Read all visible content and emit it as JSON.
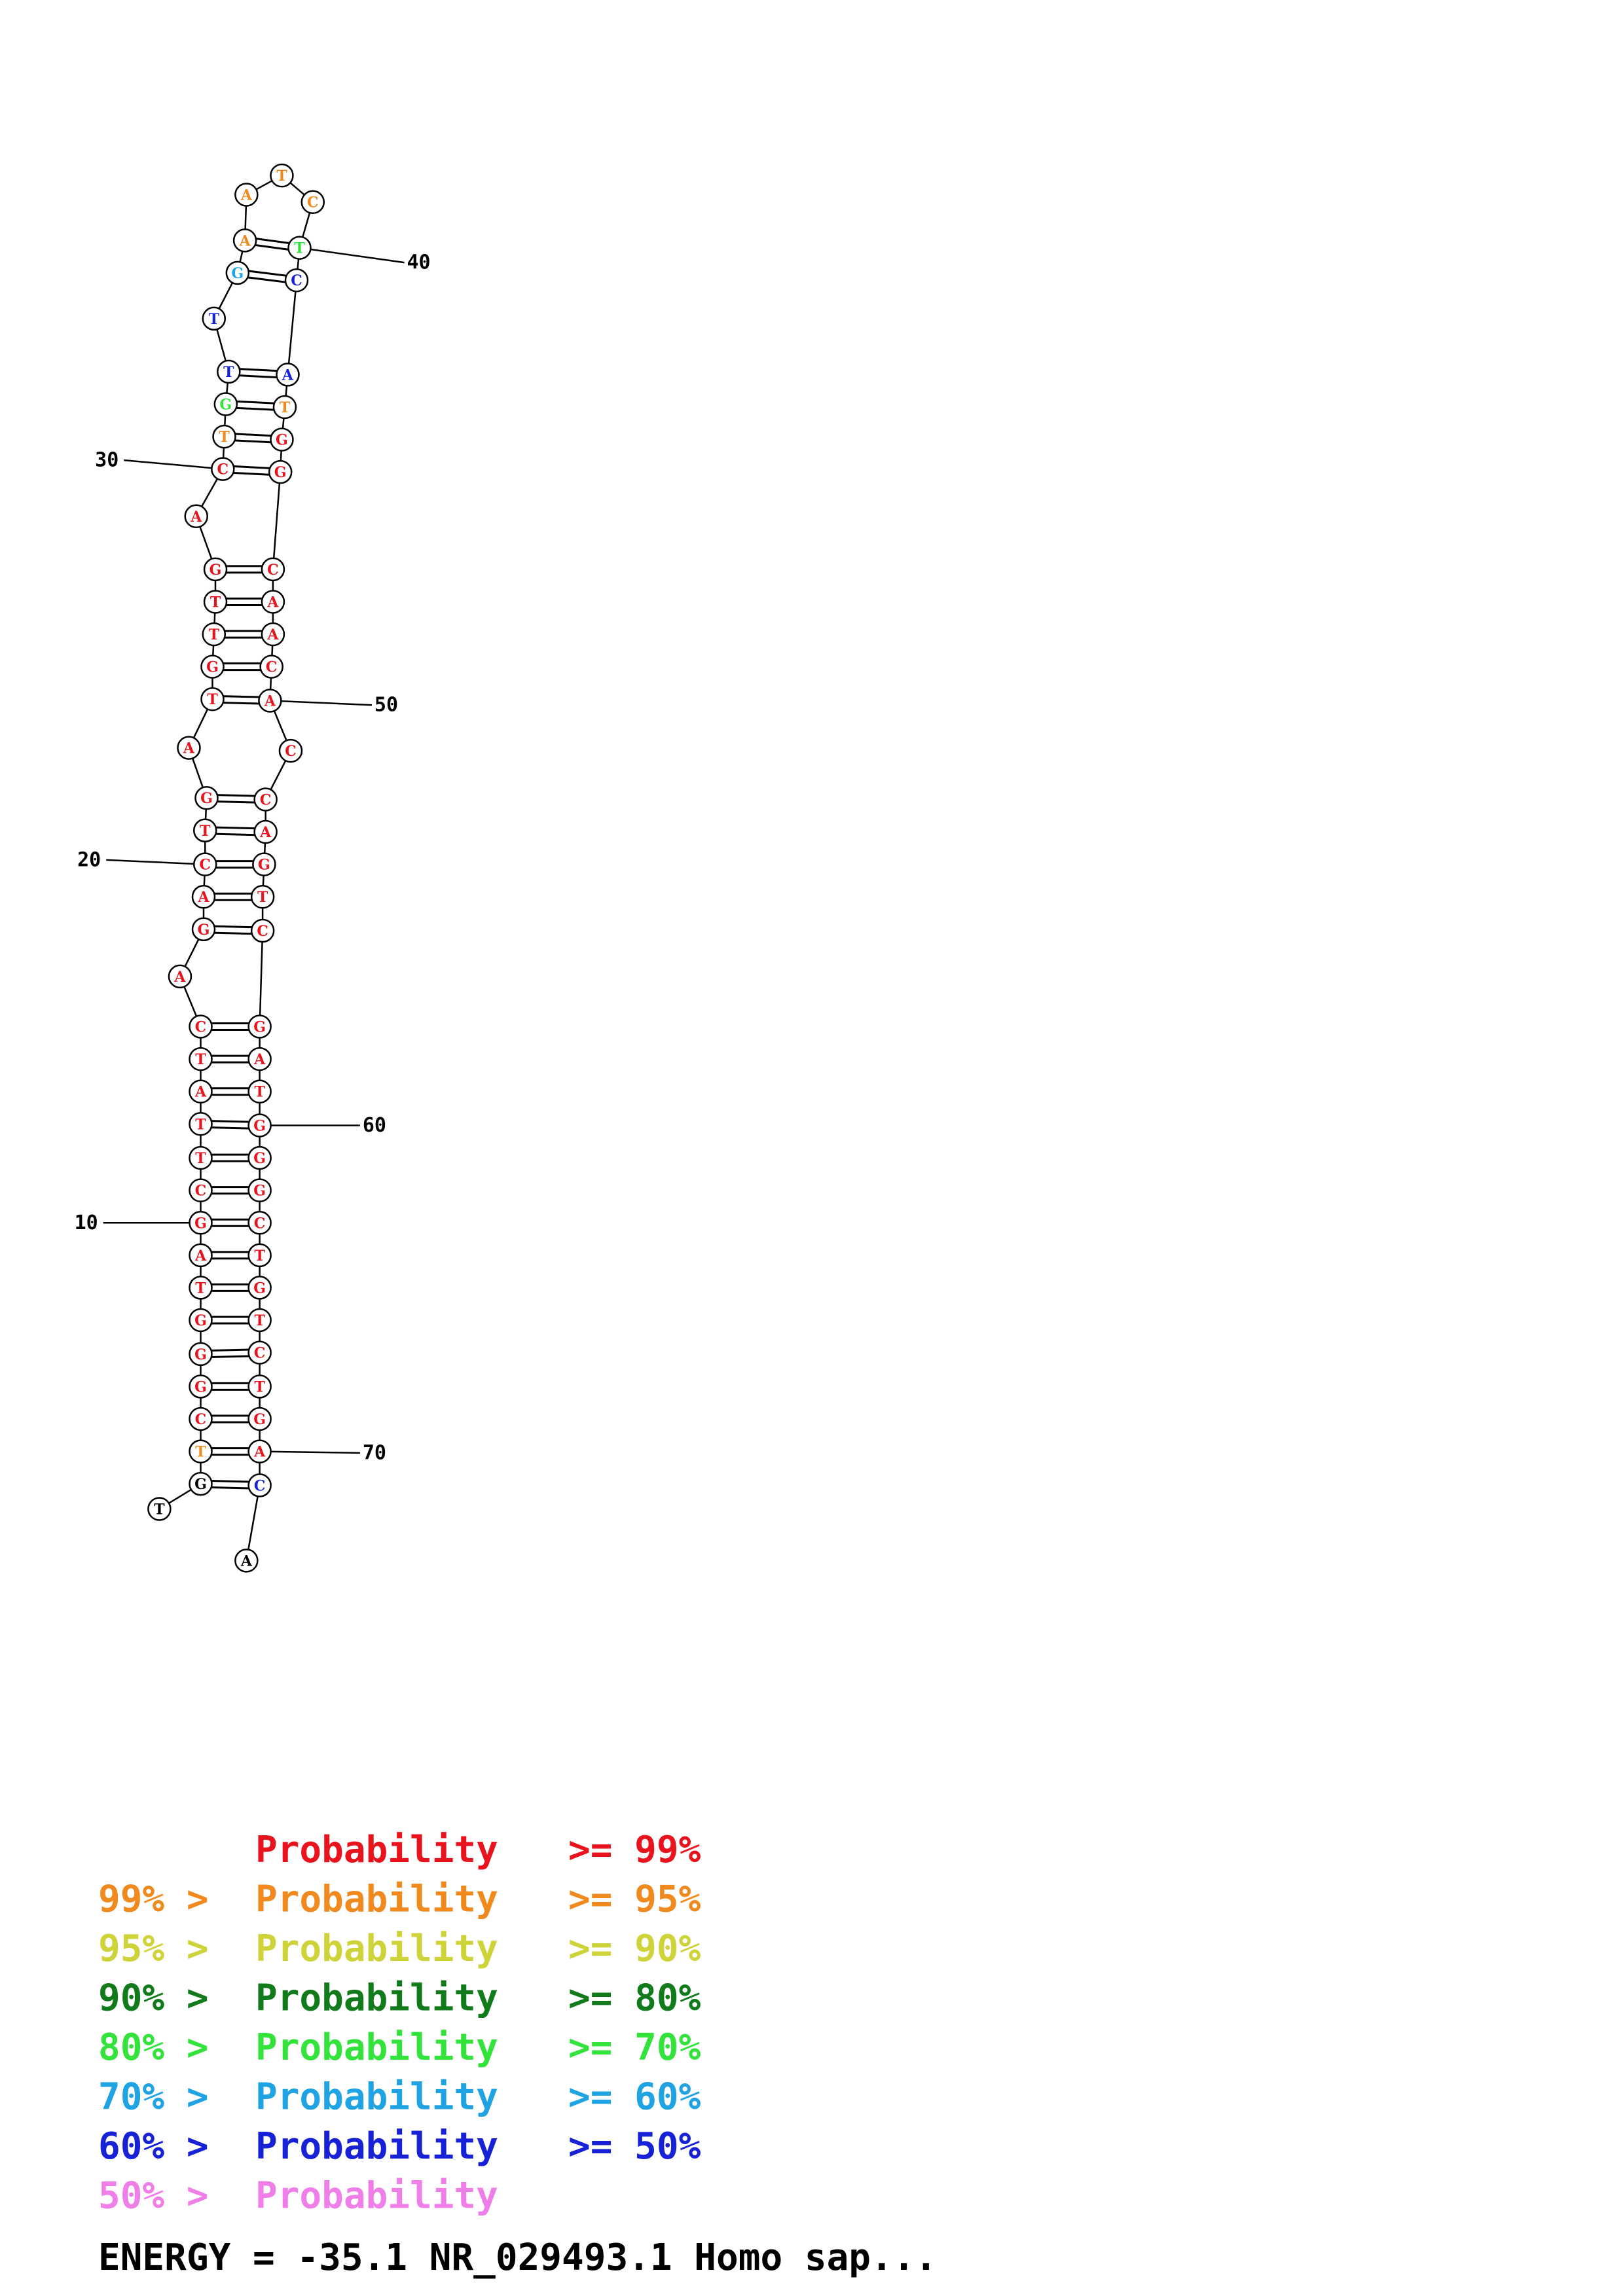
{
  "structure": {
    "sequence": "TGTCGGGTAGCTTATCAGACTGATGTTGACTGTTGAATCTCATGGCAACACCAGTCGATGGGCTGTCTGACA",
    "colors": "ppbaaaaaaaaaaaaaaaaaaaaaaaaaaabeggfbbbbeggbaaaaaaaaaaaaaaaaaaaaaaaaaaagp"
  },
  "colors": {
    "a": "#e8131c",
    "b": "#f08a1e",
    "c": "#cfd33a",
    "d": "#117a1b",
    "e": "#33e33b",
    "f": "#1fa3e2",
    "g": "#1722d6",
    "h": "#f07ee8"
  },
  "position_labels": [
    "10",
    "20",
    "30",
    "40",
    "50",
    "60",
    "70"
  ],
  "legend": [
    {
      "prefix": "",
      "label": "Probability",
      "suffix": ">= 99%",
      "color": "#e8131c"
    },
    {
      "prefix": "99% >",
      "label": "Probability",
      "suffix": ">= 95%",
      "color": "#f08a1e"
    },
    {
      "prefix": "95% >",
      "label": "Probability",
      "suffix": ">= 90%",
      "color": "#cfd33a"
    },
    {
      "prefix": "90% >",
      "label": "Probability",
      "suffix": ">= 80%",
      "color": "#117a1b"
    },
    {
      "prefix": "80% >",
      "label": "Probability",
      "suffix": ">= 70%",
      "color": "#33e33b"
    },
    {
      "prefix": "70% >",
      "label": "Probability",
      "suffix": ">= 60%",
      "color": "#1fa3e2"
    },
    {
      "prefix": "60% >",
      "label": "Probability",
      "suffix": ">= 50%",
      "color": "#1722d6"
    },
    {
      "prefix": "50% >",
      "label": "Probability",
      "suffix": "",
      "color": "#f07ee8"
    }
  ],
  "energy_line": "ENERGY = -35.1  NR_029493.1 Homo sap..."
}
